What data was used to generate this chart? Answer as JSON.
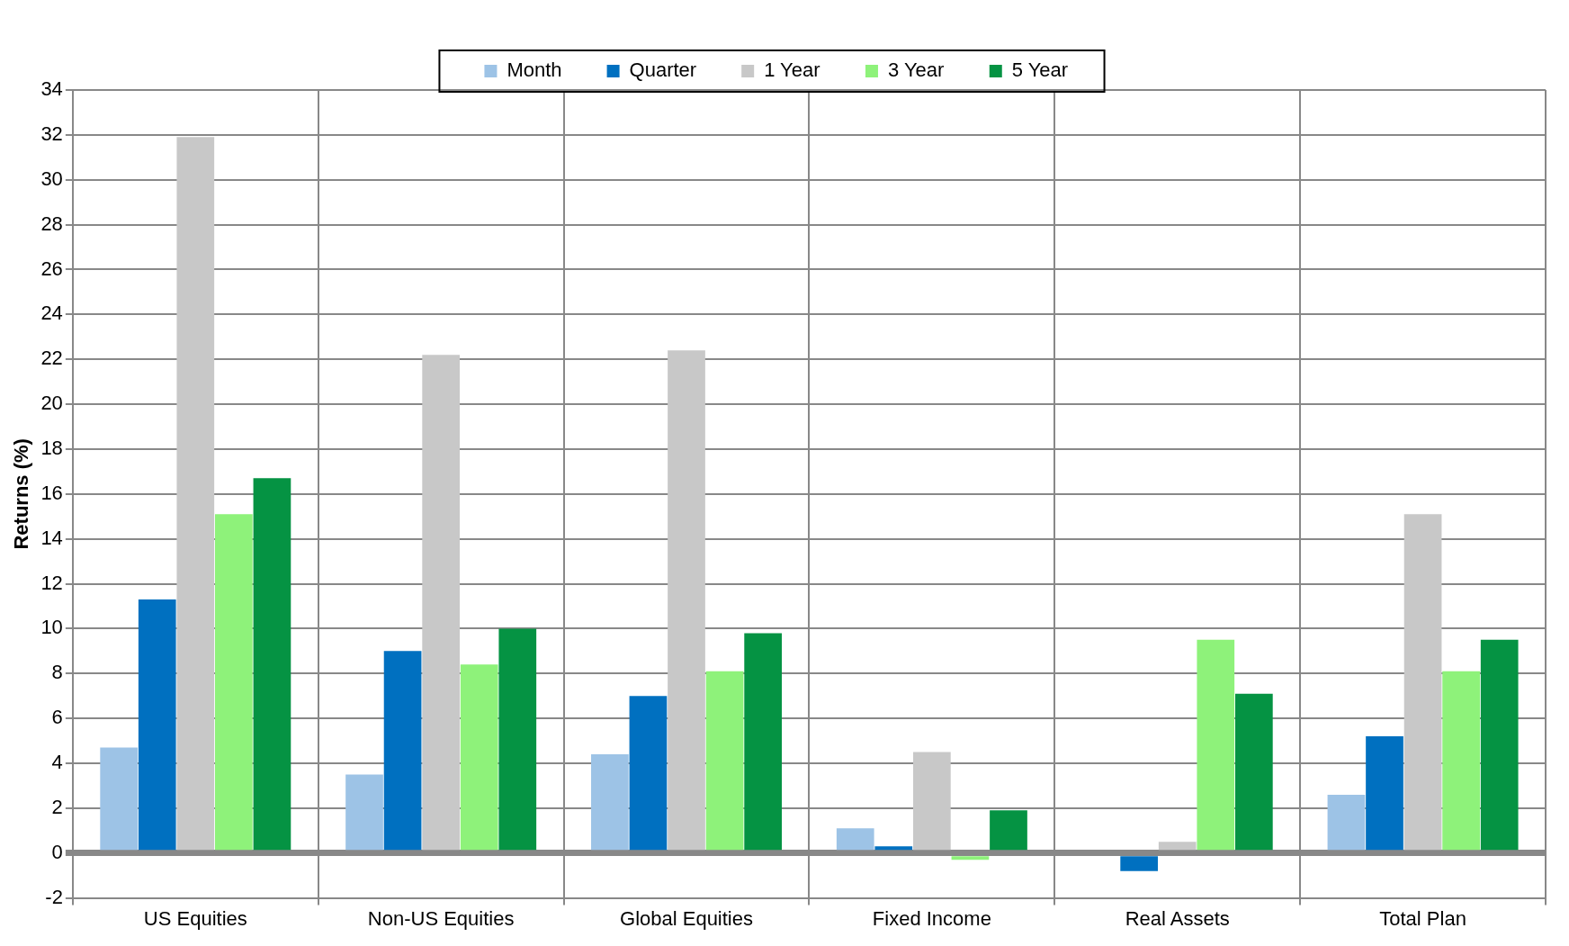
{
  "chart_data": {
    "type": "bar",
    "ylabel": "Returns (%)",
    "categories": [
      "US Equities",
      "Non-US Equities",
      "Global Equities",
      "Fixed Income",
      "Real Assets",
      "Total Plan"
    ],
    "series": [
      {
        "name": "Month",
        "color": "#9dc3e6",
        "values": [
          4.7,
          3.5,
          4.4,
          1.1,
          null,
          2.6
        ]
      },
      {
        "name": "Quarter",
        "color": "#0070c0",
        "values": [
          11.3,
          9.0,
          7.0,
          0.3,
          -0.8,
          5.2
        ]
      },
      {
        "name": "1 Year",
        "color": "#c8c8c8",
        "values": [
          31.9,
          22.2,
          22.4,
          4.5,
          0.5,
          15.1
        ]
      },
      {
        "name": "3 Year",
        "color": "#8ef27a",
        "values": [
          15.1,
          8.4,
          8.1,
          -0.3,
          9.5,
          8.1
        ]
      },
      {
        "name": "5 Year",
        "color": "#059343",
        "values": [
          16.7,
          10.0,
          9.8,
          1.9,
          7.1,
          9.5
        ]
      }
    ],
    "ylim": [
      -2,
      34
    ],
    "yticks": [
      -2,
      0,
      2,
      4,
      6,
      8,
      10,
      12,
      14,
      16,
      18,
      20,
      22,
      24,
      26,
      28,
      30,
      32,
      34
    ],
    "grid": true,
    "legend": "top"
  }
}
